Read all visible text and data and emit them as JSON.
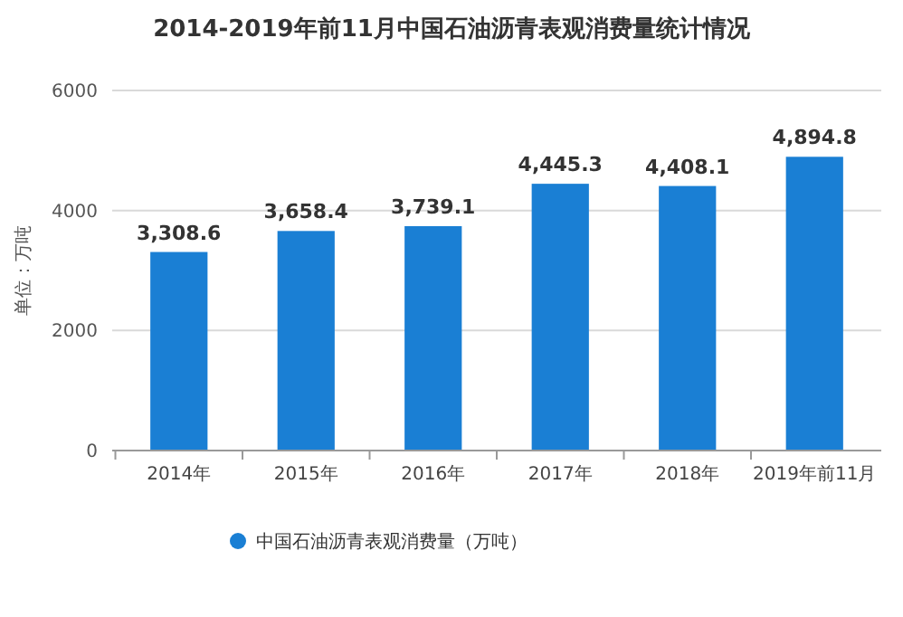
{
  "chart_data": {
    "type": "bar",
    "title": "2014-2019年前11月中国石油沥青表观消费量统计情况",
    "ylabel": "单位：万吨",
    "categories": [
      "2014年",
      "2015年",
      "2016年",
      "2017年",
      "2018年",
      "2019年前11月"
    ],
    "series": [
      {
        "name": "中国石油沥青表观消费量（万吨）",
        "color": "#1a7fd4",
        "values": [
          3308.6,
          3658.4,
          3739.1,
          4445.3,
          4408.1,
          4894.8
        ]
      }
    ],
    "value_labels": [
      "3,308.6",
      "3,658.4",
      "3,739.1",
      "4,445.3",
      "4,408.1",
      "4,894.8"
    ],
    "ylim": [
      0,
      6000
    ],
    "yticks": [
      0,
      2000,
      4000,
      6000
    ],
    "grid": "y",
    "legend": "bottom"
  }
}
